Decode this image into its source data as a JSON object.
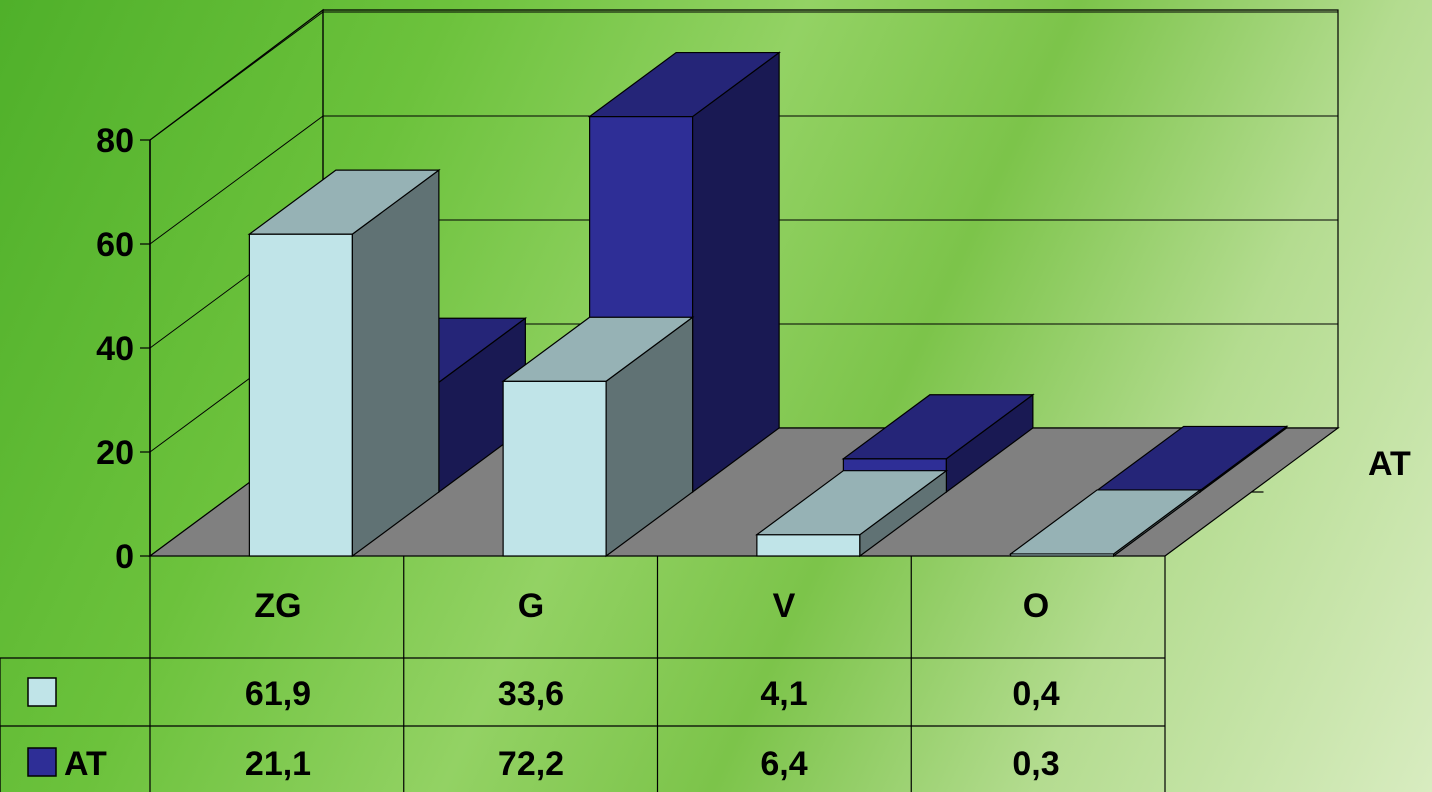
{
  "chart_data": {
    "type": "bar",
    "categories": [
      "ZG",
      "G",
      "V",
      "O"
    ],
    "series": [
      {
        "name": "",
        "values": [
          61.9,
          33.6,
          4.1,
          0.4
        ],
        "color": "#c0e4e8"
      },
      {
        "name": "AT",
        "values": [
          21.1,
          72.2,
          6.4,
          0.3
        ],
        "color": "#2e2e96"
      }
    ],
    "series_axis_labels": [
      "AT"
    ],
    "data_table": {
      "rows": [
        {
          "legend": "",
          "cells": [
            "61,9",
            "33,6",
            "4,1",
            "0,4"
          ]
        },
        {
          "legend": "AT",
          "cells": [
            "21,1",
            "72,2",
            "6,4",
            "0,3"
          ]
        }
      ]
    },
    "y_ticks": [
      "0",
      "20",
      "40",
      "60",
      "80"
    ],
    "ylim": [
      0,
      80
    ],
    "grid": true,
    "three_d": true,
    "legend": "data-table"
  }
}
